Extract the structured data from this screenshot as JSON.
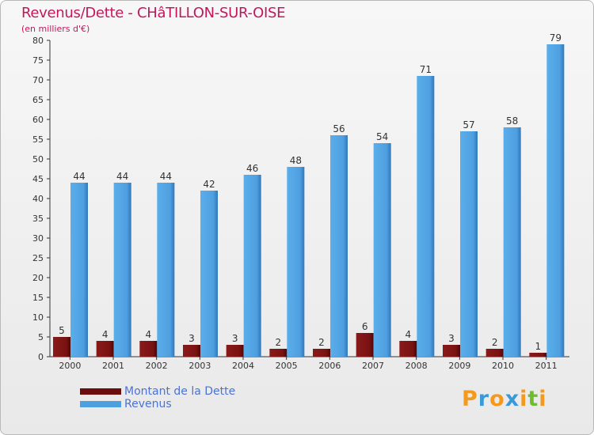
{
  "header": {
    "title": "Revenus/Dette - CHâTILLON-SUR-OISE",
    "subtitle": "(en milliers d'€)"
  },
  "chart_data": {
    "type": "bar",
    "title": "Revenus/Dette - CHâTILLON-SUR-OISE",
    "subtitle": "(en milliers d'€)",
    "xlabel": "",
    "ylabel": "",
    "ylim": [
      0,
      80
    ],
    "yticks": [
      0,
      5,
      10,
      15,
      20,
      25,
      30,
      35,
      40,
      45,
      50,
      55,
      60,
      65,
      70,
      75,
      80
    ],
    "grid": false,
    "legend_position": "bottom-left",
    "categories": [
      "2000",
      "2001",
      "2002",
      "2003",
      "2004",
      "2005",
      "2006",
      "2007",
      "2008",
      "2009",
      "2010",
      "2011"
    ],
    "series": [
      {
        "name": "Montant de la Dette",
        "color": "#7a1212",
        "values": [
          5,
          4,
          4,
          3,
          3,
          2,
          2,
          6,
          4,
          3,
          2,
          1
        ]
      },
      {
        "name": "Revenus",
        "color": "#4da0e0",
        "values": [
          44,
          44,
          44,
          42,
          46,
          48,
          56,
          54,
          71,
          57,
          58,
          79
        ]
      }
    ]
  },
  "legend": {
    "items": [
      {
        "label": "Montant de la Dette",
        "color": "#6b0d0d"
      },
      {
        "label": "Revenus",
        "color": "#4da0e0"
      }
    ]
  },
  "logo": {
    "text": "Proxiti",
    "colors": [
      "#f39a1e",
      "#3a9ad9",
      "#f39a1e",
      "#3a9ad9",
      "#f39a1e",
      "#6cbf2a",
      "#f39a1e"
    ]
  }
}
